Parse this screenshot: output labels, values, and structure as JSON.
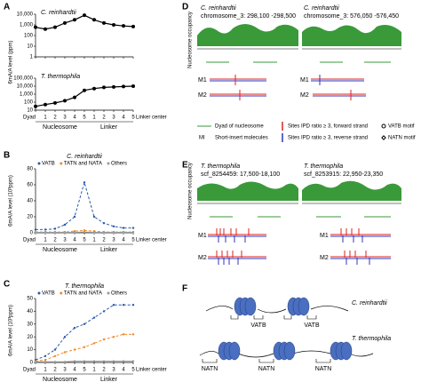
{
  "panel_labels": [
    "A",
    "B",
    "C",
    "D",
    "E",
    "F"
  ],
  "chart_data": [
    {
      "type": "line",
      "title": "C. reinhardtii",
      "ylabel": "6mA/A level (ppm)",
      "log": true,
      "series": [
        {
          "name": "6mA",
          "color": "#000000",
          "values": [
            600,
            400,
            600,
            1500,
            3000,
            8000,
            3000,
            1500,
            1000,
            800,
            700
          ]
        }
      ],
      "ylim": [
        1,
        10000
      ],
      "yticks": [
        {
          "value": 10000,
          "label": "10,000"
        },
        {
          "value": 1000,
          "label": "1,000"
        },
        100,
        10,
        1
      ]
    },
    {
      "type": "line",
      "title": "T. thermophila",
      "log": true,
      "categories": [
        "Dyad",
        "1",
        "2",
        "3",
        "4",
        "5",
        "1",
        "2",
        "3",
        "4",
        "5"
      ],
      "groups": [
        "Nucleosome",
        "Linker"
      ],
      "end_label": "Linker center",
      "series": [
        {
          "name": "6mA",
          "color": "#000000",
          "values": [
            30,
            50,
            80,
            150,
            400,
            3000,
            5000,
            7000,
            8000,
            9000,
            10000
          ]
        }
      ],
      "ylim": [
        10,
        100000
      ],
      "yticks": [
        {
          "value": 100000,
          "label": "100,000"
        },
        {
          "value": 10000,
          "label": "10,000"
        },
        {
          "value": 1000,
          "label": "1,000"
        },
        100,
        10
      ]
    },
    {
      "type": "line",
      "title": "C. reinhardtii",
      "ylabel": "6mA/A level (10³ppm)",
      "categories": [
        "Dyad",
        "1",
        "2",
        "3",
        "4",
        "5",
        "1",
        "2",
        "3",
        "4",
        "5"
      ],
      "groups": [
        "Nucleosome",
        "Linker"
      ],
      "end_label": "Linker center",
      "series": [
        {
          "name": "VATB",
          "color": "#2b5bab",
          "values": [
            4,
            4,
            5,
            10,
            20,
            63,
            20,
            12,
            8,
            6,
            6
          ]
        },
        {
          "name": "TATN and NATA",
          "color": "#f08a24",
          "values": [
            1,
            1,
            1,
            1,
            2,
            3,
            2,
            1,
            1,
            1,
            1
          ]
        },
        {
          "name": "Others",
          "color": "#9a9a9a",
          "values": [
            0.5,
            0.5,
            0.5,
            0.5,
            0.5,
            1,
            0.5,
            0.5,
            0.5,
            0.5,
            0.5
          ]
        }
      ],
      "ylim": [
        0,
        80
      ],
      "yticks": [
        0,
        20,
        40,
        60,
        80
      ]
    },
    {
      "type": "line",
      "title": "T. thermophila",
      "ylabel": "6mA/A level (10³ppm)",
      "categories": [
        "Dyad",
        "1",
        "2",
        "3",
        "4",
        "5",
        "1",
        "2",
        "3",
        "4",
        "5"
      ],
      "groups": [
        "Nucleosome",
        "Linker"
      ],
      "end_label": "Linker center",
      "series": [
        {
          "name": "VATB",
          "color": "#2b5bab",
          "values": [
            2,
            5,
            10,
            20,
            27,
            30,
            35,
            40,
            45,
            45,
            45
          ]
        },
        {
          "name": "TATN and NATA",
          "color": "#f08a24",
          "values": [
            1,
            2,
            5,
            8,
            10,
            12,
            15,
            18,
            20,
            22,
            22
          ]
        },
        {
          "name": "Others",
          "color": "#9a9a9a",
          "values": [
            0.5,
            0.5,
            0.5,
            0.5,
            1,
            1,
            1,
            1,
            1,
            1,
            1
          ]
        }
      ],
      "ylim": [
        0,
        50
      ],
      "yticks": [
        0,
        10,
        20,
        30,
        40,
        50
      ]
    }
  ],
  "panel_d": {
    "ylabel": "Nucleosome occupancy",
    "tracks": [
      {
        "species": "C. reinhardtii",
        "region": "chromosome_3: 298,100 -298,500"
      },
      {
        "species": "C. reinhardtii",
        "region": "chromosome_3: 576,050 -576,450"
      }
    ],
    "molecules": [
      "M1",
      "M2"
    ],
    "legend": [
      "Dyad of nucleosome",
      "Sites IPD ratio ≥ 3, forward strand",
      "VATB motif",
      "MI",
      "Short-insert molecules",
      "Sites IPD ratio ≥ 3, reverse strand",
      "NATN motif"
    ]
  },
  "panel_e": {
    "ylabel": "Nucleosome occupancy",
    "tracks": [
      {
        "species": "T. thermophila",
        "region": "scf_8254459: 17,500-18,100"
      },
      {
        "species": "T. thermophila",
        "region": "scf_8253915: 22,950-23,350"
      }
    ],
    "molecules": [
      "M1",
      "M2"
    ]
  },
  "panel_f": {
    "species": [
      "C. reinhardtii",
      "T. thermophila"
    ],
    "motifs": [
      "VATB",
      "VATB",
      "NATN",
      "NATN",
      "NATN"
    ]
  }
}
